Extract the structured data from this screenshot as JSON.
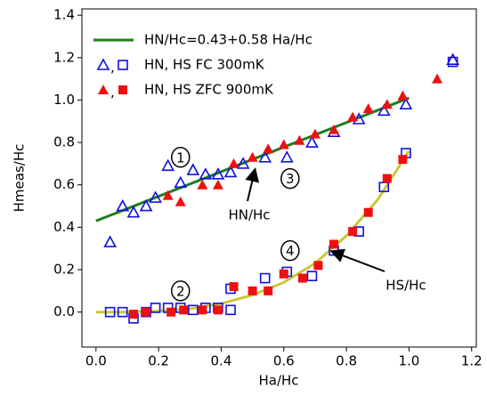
{
  "chart_data": {
    "type": "scatter",
    "xlabel": "Ha/Hc",
    "ylabel": "Hmeas/Hc",
    "xlim": [
      -0.045,
      1.215
    ],
    "ylim": [
      -0.165,
      1.43
    ],
    "xticks": [
      {
        "value": 0,
        "label": "0.0"
      },
      {
        "value": 0.2,
        "label": "0.2"
      },
      {
        "value": 0.4,
        "label": "0.4"
      },
      {
        "value": 0.6,
        "label": "0.6"
      },
      {
        "value": 0.8,
        "label": "0.8"
      },
      {
        "value": 1,
        "label": "1.0"
      },
      {
        "value": 1.2,
        "label": "1.2"
      }
    ],
    "yticks": [
      {
        "value": 0,
        "label": "0.0"
      },
      {
        "value": 0.2,
        "label": "0.2"
      },
      {
        "value": 0.4,
        "label": "0.4"
      },
      {
        "value": 0.6,
        "label": "0.6"
      },
      {
        "value": 0.8,
        "label": "0.8"
      },
      {
        "value": 1,
        "label": "1.0"
      },
      {
        "value": 1.2,
        "label": "1.2"
      },
      {
        "value": 1.4,
        "label": "1.4"
      }
    ],
    "series": [
      {
        "marker": "line",
        "color": "#1e7d1e",
        "x": [
          0,
          1
        ],
        "values": [
          0.43,
          1.01
        ]
      },
      {
        "marker": "line",
        "color": "#c8c83a",
        "x": [
          0,
          0.1,
          0.2,
          0.3,
          0.4,
          0.5,
          0.6,
          0.7,
          0.8,
          0.9,
          1.0
        ],
        "values": [
          0,
          0,
          0.005,
          0.015,
          0.04,
          0.08,
          0.14,
          0.23,
          0.36,
          0.53,
          0.76
        ]
      },
      {
        "marker": "triangle",
        "filled": false,
        "color": "#1010e0",
        "x": [
          0.045,
          0.085,
          0.12,
          0.16,
          0.19,
          0.23,
          0.27,
          0.31,
          0.35,
          0.39,
          0.43,
          0.47,
          0.54,
          0.61,
          0.69,
          0.76,
          0.84,
          0.92,
          0.99,
          1.14
        ],
        "values": [
          0.33,
          0.5,
          0.47,
          0.5,
          0.54,
          0.69,
          0.61,
          0.67,
          0.65,
          0.65,
          0.66,
          0.7,
          0.73,
          0.73,
          0.8,
          0.85,
          0.91,
          0.95,
          0.98,
          1.19
        ]
      },
      {
        "marker": "square",
        "filled": false,
        "color": "#1010e0",
        "x": [
          0.045,
          0.085,
          0.12,
          0.16,
          0.19,
          0.23,
          0.27,
          0.31,
          0.35,
          0.39,
          0.43,
          0.43,
          0.54,
          0.61,
          0.69,
          0.76,
          0.84,
          0.92,
          0.99,
          1.14
        ],
        "values": [
          0,
          0,
          -0.03,
          0,
          0.02,
          0.02,
          0.02,
          0.01,
          0.02,
          0.02,
          0.11,
          0.01,
          0.16,
          0.19,
          0.17,
          0.29,
          0.38,
          0.59,
          0.75,
          1.18
        ]
      },
      {
        "marker": "triangle",
        "filled": true,
        "color": "#ee1010",
        "x": [
          0.23,
          0.27,
          0.34,
          0.39,
          0.44,
          0.5,
          0.55,
          0.6,
          0.65,
          0.7,
          0.76,
          0.82,
          0.87,
          0.93,
          0.98,
          1.09
        ],
        "values": [
          0.55,
          0.52,
          0.6,
          0.6,
          0.7,
          0.73,
          0.77,
          0.79,
          0.81,
          0.84,
          0.86,
          0.92,
          0.96,
          0.98,
          1.02,
          1.1
        ]
      },
      {
        "marker": "square",
        "filled": true,
        "color": "#ee1010",
        "x": [
          0.12,
          0.16,
          0.24,
          0.28,
          0.34,
          0.39,
          0.44,
          0.5,
          0.55,
          0.6,
          0.66,
          0.71,
          0.76,
          0.82,
          0.87,
          0.93,
          0.98
        ],
        "values": [
          -0.01,
          0,
          0,
          0.01,
          0.01,
          0.01,
          0.12,
          0.1,
          0.1,
          0.18,
          0.16,
          0.22,
          0.32,
          0.38,
          0.47,
          0.63,
          0.72
        ]
      }
    ],
    "legend": {
      "loc": "upper left",
      "entries": [
        {
          "label": "HN/Hc=0.43+0.58 Ha/Hc",
          "series": [
            0
          ]
        },
        {
          "label": "HN, HS  FC 300mK",
          "series": [
            2,
            3
          ],
          "separator": ","
        },
        {
          "label": "HN, HS  ZFC 900mK",
          "series": [
            4,
            5
          ],
          "separator": ","
        }
      ]
    },
    "annotations": [
      "1",
      "2",
      "3",
      "4",
      "HN/Hc",
      "HS/Hc"
    ]
  }
}
